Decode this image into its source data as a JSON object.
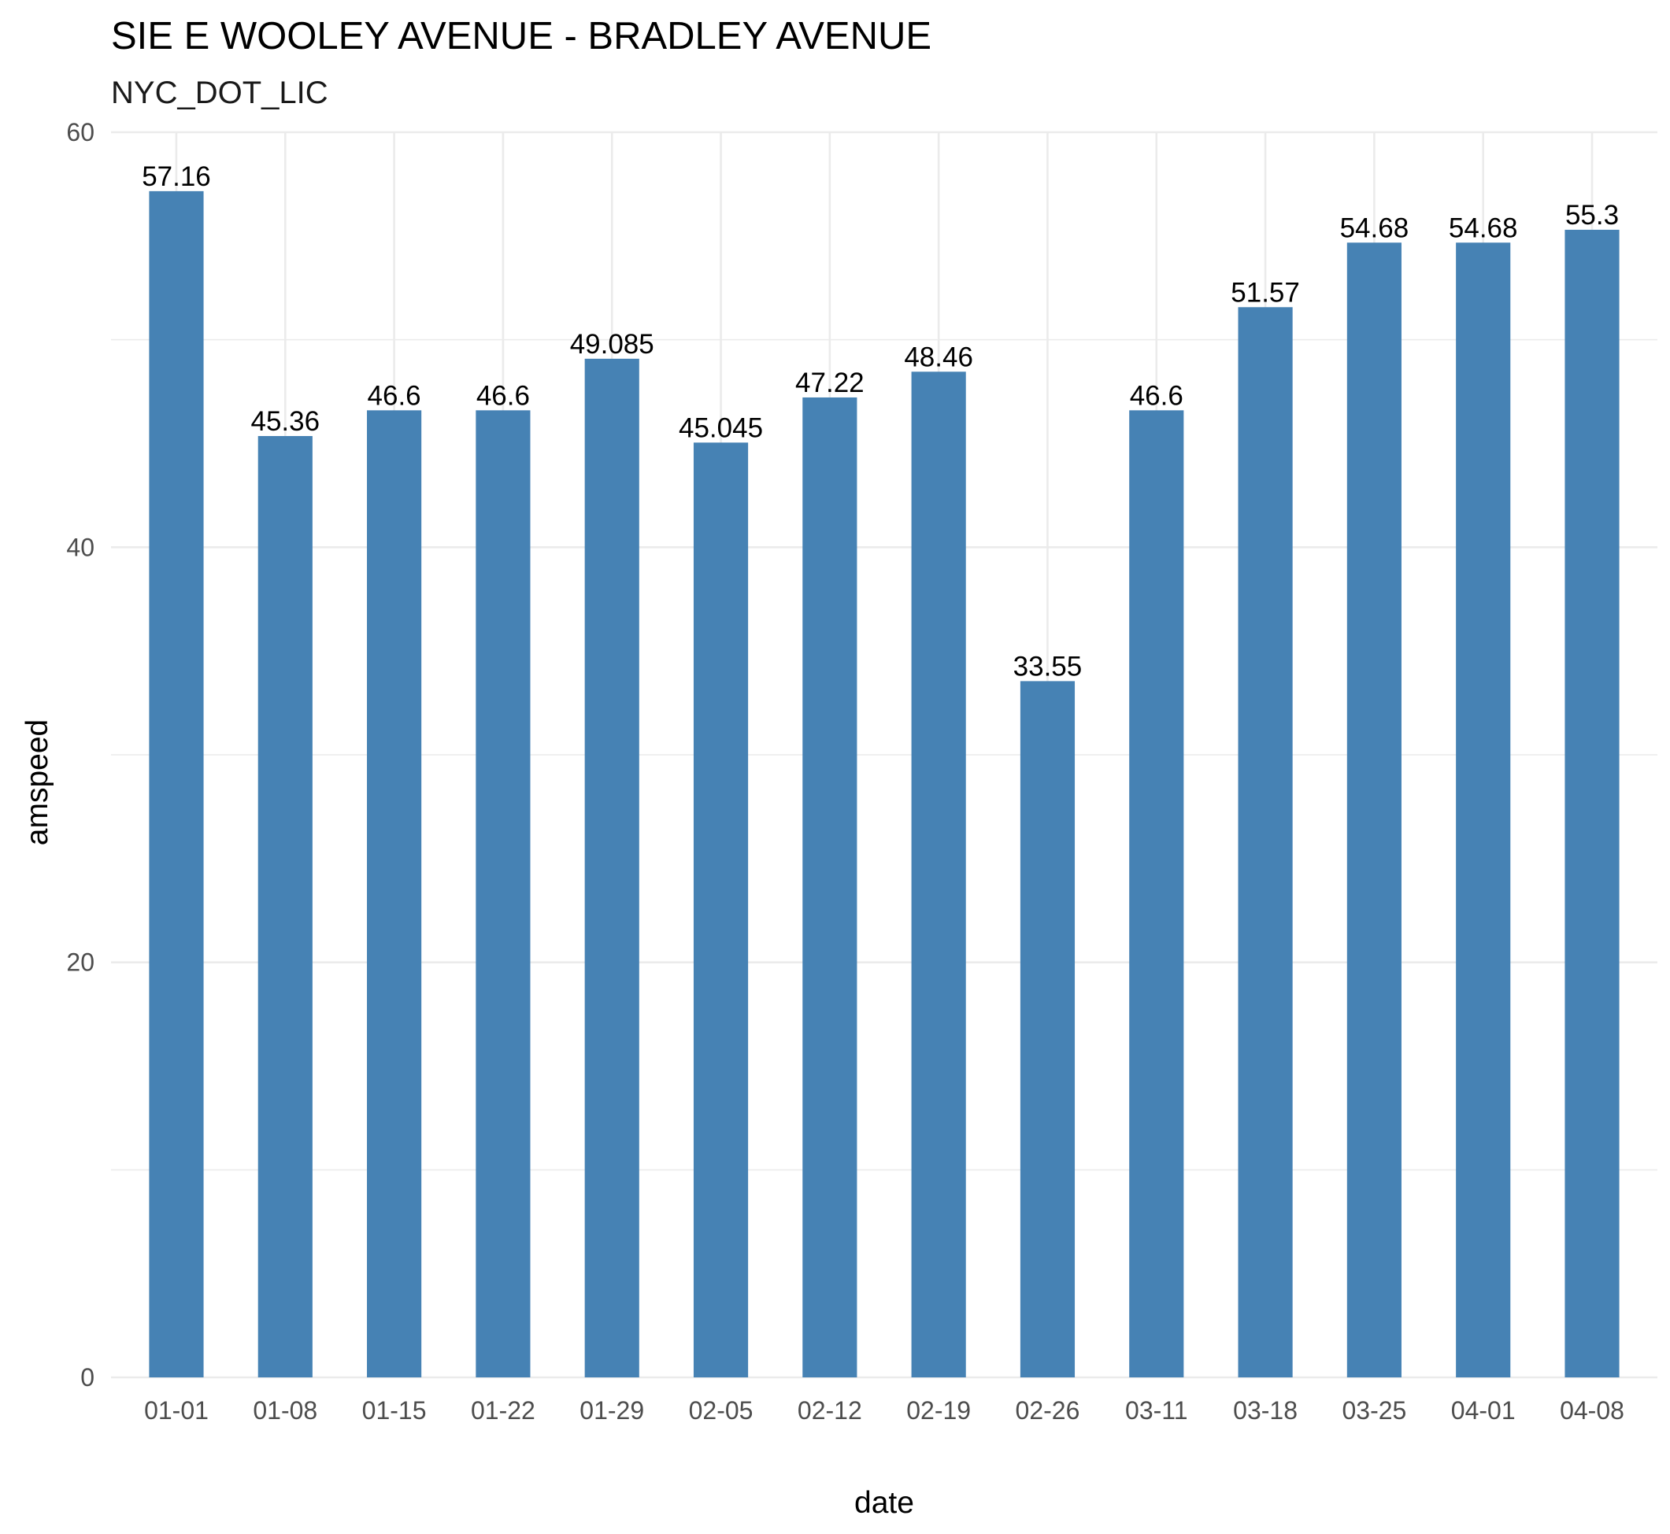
{
  "chart_data": {
    "type": "bar",
    "title": "SIE E WOOLEY AVENUE - BRADLEY AVENUE",
    "subtitle": "NYC_DOT_LIC",
    "xlabel": "date",
    "ylabel": "amspeed",
    "categories": [
      "01-01",
      "01-08",
      "01-15",
      "01-22",
      "01-29",
      "02-05",
      "02-12",
      "02-19",
      "02-26",
      "03-11",
      "03-18",
      "03-25",
      "04-01",
      "04-08"
    ],
    "values": [
      57.16,
      45.36,
      46.6,
      46.6,
      49.085,
      45.045,
      47.22,
      48.46,
      33.55,
      46.6,
      51.57,
      54.68,
      54.68,
      55.3
    ],
    "labels": [
      "57.16",
      "45.36",
      "46.6",
      "46.6",
      "49.085",
      "45.045",
      "47.22",
      "48.46",
      "33.55",
      "46.6",
      "51.57",
      "54.68",
      "54.68",
      "55.3"
    ],
    "ylim": [
      0,
      60
    ],
    "yticks": [
      0,
      20,
      40,
      60
    ],
    "ytick_labels": [
      "0",
      "20",
      "40",
      "60"
    ],
    "grid": true,
    "legend": "none",
    "bar_color": "#4682B4"
  }
}
